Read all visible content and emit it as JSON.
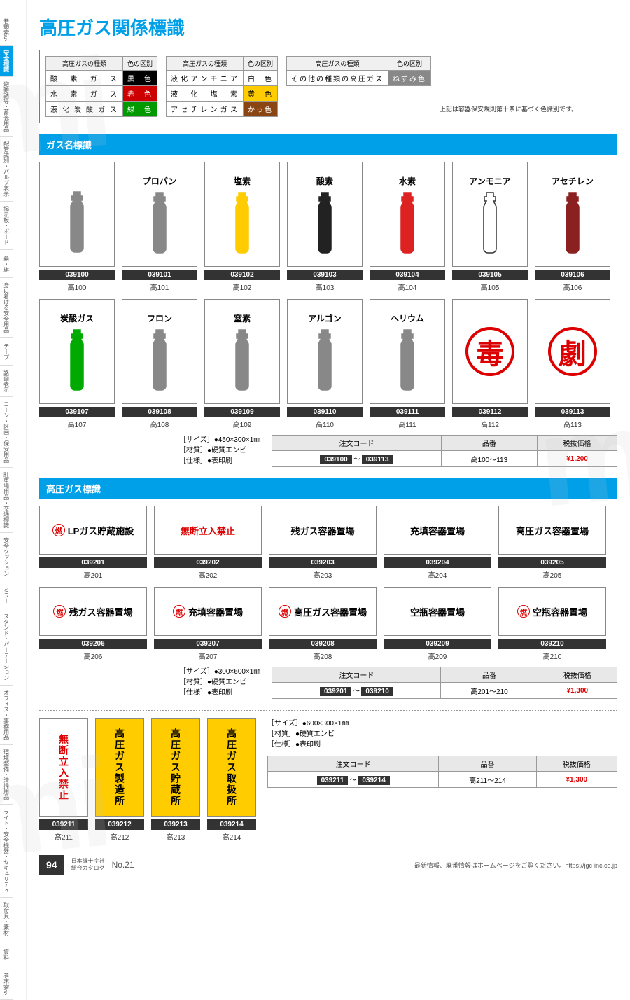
{
  "title": "高圧ガス関係標識",
  "sidebar": [
    {
      "label": "巻頭索引",
      "active": false
    },
    {
      "label": "安全標識",
      "active": true
    },
    {
      "label": "避難誘導・蓄光用品",
      "active": false
    },
    {
      "label": "配管識別・バルブ表示",
      "active": false
    },
    {
      "label": "掲示板・ボード",
      "active": false
    },
    {
      "label": "幕・旗",
      "active": false
    },
    {
      "label": "身に着ける安全用品",
      "active": false
    },
    {
      "label": "テープ",
      "active": false
    },
    {
      "label": "路面表示",
      "active": false
    },
    {
      "label": "コーン・区画・保安用品",
      "active": false
    },
    {
      "label": "駐車場用品・交通標識",
      "active": false
    },
    {
      "label": "安全クッション",
      "active": false
    },
    {
      "label": "ミラー",
      "active": false
    },
    {
      "label": "スタンド・パーテーション",
      "active": false
    },
    {
      "label": "オフィス・事務用品",
      "active": false
    },
    {
      "label": "環境整備・清掃用品",
      "active": false
    },
    {
      "label": "ライト・安全機器・セキュリティ",
      "active": false
    },
    {
      "label": "取付具・素材",
      "active": false
    },
    {
      "label": "資料",
      "active": false
    },
    {
      "label": "巻末索引",
      "active": false
    }
  ],
  "colorTables": [
    {
      "header1": "高圧ガスの種類",
      "header2": "色の区別",
      "rows": [
        {
          "name": "酸素ガス",
          "color": "黒色",
          "bg": "#000",
          "fg": "#fff"
        },
        {
          "name": "水素ガス",
          "color": "赤色",
          "bg": "#c00",
          "fg": "#fff"
        },
        {
          "name": "液化炭酸ガス",
          "color": "緑色",
          "bg": "#090",
          "fg": "#fff"
        }
      ]
    },
    {
      "header1": "高圧ガスの種類",
      "header2": "色の区別",
      "rows": [
        {
          "name": "液化アンモニア",
          "color": "白色",
          "bg": "#fff",
          "fg": "#000"
        },
        {
          "name": "液化塩素",
          "color": "黄色",
          "bg": "#fc0",
          "fg": "#000"
        },
        {
          "name": "アセチレンガス",
          "color": "かっ色",
          "bg": "#8b4513",
          "fg": "#fff"
        }
      ]
    },
    {
      "header1": "高圧ガスの種類",
      "header2": "色の区別",
      "rows": [
        {
          "name": "その他の種類の高圧ガス",
          "color": "ねずみ色",
          "bg": "#888",
          "fg": "#fff"
        }
      ]
    }
  ],
  "colorNote": "上記は容器保安規則第十条に基づく色識別です。",
  "section1": {
    "title": "ガス名標識",
    "items": [
      {
        "label": "",
        "fill": "#888",
        "stroke": "#888",
        "code": "039100",
        "sub": "高100"
      },
      {
        "label": "プロパン",
        "fill": "#888",
        "stroke": "#888",
        "code": "039101",
        "sub": "高101"
      },
      {
        "label": "塩素",
        "fill": "#fc0",
        "stroke": "#fc0",
        "code": "039102",
        "sub": "高102"
      },
      {
        "label": "酸素",
        "fill": "#222",
        "stroke": "#222",
        "code": "039103",
        "sub": "高103"
      },
      {
        "label": "水素",
        "fill": "#d22",
        "stroke": "#d22",
        "code": "039104",
        "sub": "高104"
      },
      {
        "label": "アンモニア",
        "fill": "#fff",
        "stroke": "#333",
        "code": "039105",
        "sub": "高105"
      },
      {
        "label": "アセチレン",
        "fill": "#8b2020",
        "stroke": "#8b2020",
        "code": "039106",
        "sub": "高106"
      },
      {
        "label": "炭酸ガス",
        "fill": "#0a0",
        "stroke": "#0a0",
        "code": "039107",
        "sub": "高107"
      },
      {
        "label": "フロン",
        "fill": "#888",
        "stroke": "#888",
        "code": "039108",
        "sub": "高108"
      },
      {
        "label": "窒素",
        "fill": "#888",
        "stroke": "#888",
        "code": "039109",
        "sub": "高109"
      },
      {
        "label": "アルゴン",
        "fill": "#888",
        "stroke": "#888",
        "code": "039110",
        "sub": "高110"
      },
      {
        "label": "ヘリウム",
        "fill": "#888",
        "stroke": "#888",
        "code": "039111",
        "sub": "高111"
      },
      {
        "label": "",
        "circle": "毒",
        "code": "039112",
        "sub": "高112"
      },
      {
        "label": "",
        "circle": "劇",
        "code": "039113",
        "sub": "高113"
      }
    ],
    "spec": {
      "size": "［サイズ］●450×300×1㎜",
      "material": "［材質］●硬質エンビ",
      "finish": "［仕様］●表印刷"
    },
    "price": {
      "th1": "注文コード",
      "th2": "品番",
      "th3": "税抜価格",
      "c1a": "039100",
      "c1b": "039113",
      "c2": "高100〜113",
      "c3": "¥1,200"
    }
  },
  "section2": {
    "title": "高圧ガス標識",
    "items": [
      {
        "nen": true,
        "text": "LPガス貯蔵施設",
        "red": false,
        "code": "039201",
        "sub": "高201"
      },
      {
        "nen": false,
        "text": "無断立入禁止",
        "red": true,
        "code": "039202",
        "sub": "高202"
      },
      {
        "nen": false,
        "text": "残ガス容器置場",
        "red": false,
        "code": "039203",
        "sub": "高203"
      },
      {
        "nen": false,
        "text": "充填容器置場",
        "red": false,
        "code": "039204",
        "sub": "高204"
      },
      {
        "nen": false,
        "text": "高圧ガス容器置場",
        "red": false,
        "code": "039205",
        "sub": "高205"
      },
      {
        "nen": true,
        "text": "残ガス容器置場",
        "red": false,
        "code": "039206",
        "sub": "高206"
      },
      {
        "nen": true,
        "text": "充填容器置場",
        "red": false,
        "code": "039207",
        "sub": "高207"
      },
      {
        "nen": true,
        "text": "高圧ガス容器置場",
        "red": false,
        "code": "039208",
        "sub": "高208"
      },
      {
        "nen": false,
        "text": "空瓶容器置場",
        "red": false,
        "code": "039209",
        "sub": "高209"
      },
      {
        "nen": true,
        "text": "空瓶容器置場",
        "red": false,
        "code": "039210",
        "sub": "高210"
      }
    ],
    "spec": {
      "size": "［サイズ］●300×600×1㎜",
      "material": "［材質］●硬質エンビ",
      "finish": "［仕様］●表印刷"
    },
    "price": {
      "th1": "注文コード",
      "th2": "品番",
      "th3": "税抜価格",
      "c1a": "039201",
      "c1b": "039210",
      "c2": "高201〜210",
      "c3": "¥1,300"
    }
  },
  "section3": {
    "items": [
      {
        "text": "無断立入禁止",
        "yellow": false,
        "code": "039211",
        "sub": "高211"
      },
      {
        "text": "高圧ガス製造所",
        "yellow": true,
        "code": "039212",
        "sub": "高212"
      },
      {
        "text": "高圧ガス貯蔵所",
        "yellow": true,
        "code": "039213",
        "sub": "高213"
      },
      {
        "text": "高圧ガス取扱所",
        "yellow": true,
        "code": "039214",
        "sub": "高214"
      }
    ],
    "spec": {
      "size": "［サイズ］●600×300×1㎜",
      "material": "［材質］●硬質エンビ",
      "finish": "［仕様］●表印刷"
    },
    "price": {
      "th1": "注文コード",
      "th2": "品番",
      "th3": "税抜価格",
      "c1a": "039211",
      "c1b": "039214",
      "c2": "高211〜214",
      "c3": "¥1,300"
    }
  },
  "footer": {
    "pageNum": "94",
    "catalog": "日本緑十字社\n総合カタログ",
    "catalogNo": "No.21",
    "right": "最新情報、廃番情報はホームページをご覧ください。https://jgc-inc.co.jp"
  },
  "nenChar": "燃",
  "tilde": "〜"
}
